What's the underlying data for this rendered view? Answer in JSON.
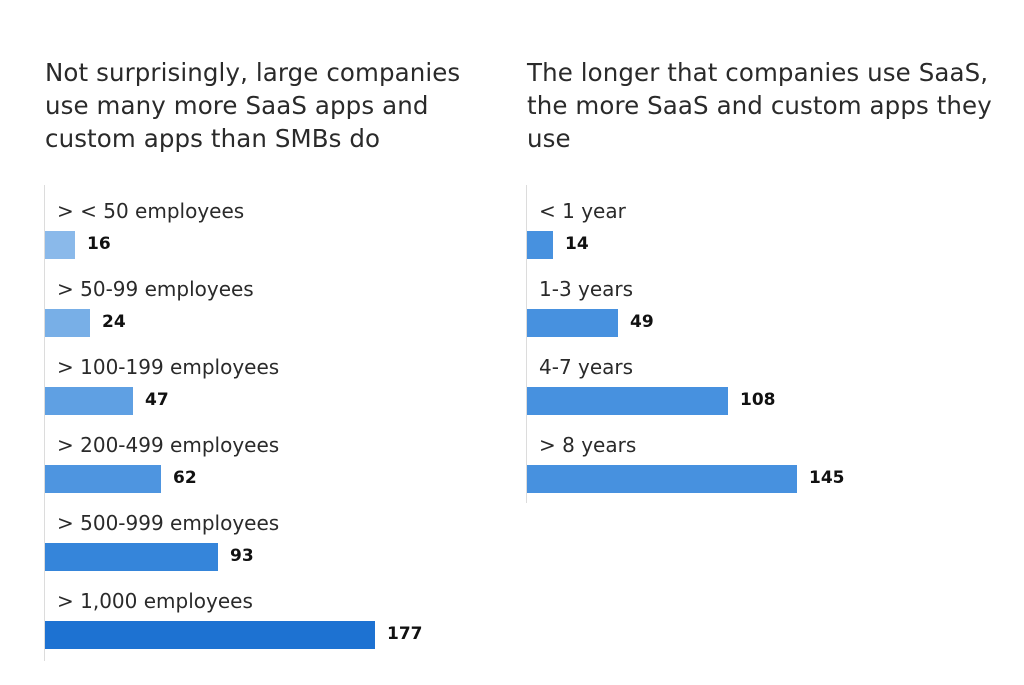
{
  "chart_data": [
    {
      "type": "bar",
      "orientation": "horizontal",
      "title": "Not surprisingly, large companies use many more SaaS apps and custom apps than SMBs do",
      "categories": [
        "> < 50 employees",
        "> 50-99 employees",
        "> 100-199 employees",
        "> 200-499 employees",
        "> 500-999 employees",
        "> 1,000 employees"
      ],
      "values": [
        16,
        24,
        47,
        62,
        93,
        177
      ],
      "colors": [
        "#8ab9ea",
        "#78afe7",
        "#5fa0e3",
        "#4e95e0",
        "#3585da",
        "#1d72d2"
      ],
      "xlim": [
        0,
        177
      ],
      "xlabel": "",
      "ylabel": "",
      "grid": false
    },
    {
      "type": "bar",
      "orientation": "horizontal",
      "title": "The longer that companies use SaaS, the more SaaS and custom apps they use",
      "categories": [
        "< 1 year",
        "1-3 years",
        "4-7 years",
        "> 8 years"
      ],
      "values": [
        14,
        49,
        108,
        145
      ],
      "colors": [
        "#4791df",
        "#4791df",
        "#4791df",
        "#4791df"
      ],
      "xlim": [
        0,
        177
      ],
      "xlabel": "",
      "ylabel": "",
      "grid": false
    }
  ]
}
